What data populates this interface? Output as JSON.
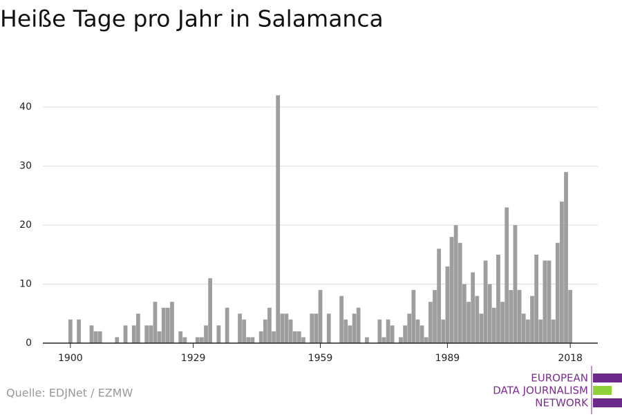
{
  "chart_data": {
    "type": "bar",
    "title": "Heiße Tage pro Jahr in Salamanca",
    "source": "Quelle: EDJNet / EZMW",
    "logo": [
      "EUROPEAN",
      "DATA JOURNALISM",
      "NETWORK"
    ],
    "color": "#9e9e9e",
    "x": [
      1900,
      1901,
      1902,
      1903,
      1904,
      1905,
      1906,
      1907,
      1908,
      1909,
      1910,
      1911,
      1912,
      1913,
      1914,
      1915,
      1916,
      1917,
      1918,
      1919,
      1920,
      1921,
      1922,
      1923,
      1924,
      1925,
      1926,
      1927,
      1928,
      1929,
      1930,
      1931,
      1932,
      1933,
      1934,
      1935,
      1936,
      1937,
      1938,
      1939,
      1940,
      1941,
      1942,
      1943,
      1944,
      1945,
      1946,
      1947,
      1948,
      1949,
      1950,
      1951,
      1952,
      1953,
      1954,
      1955,
      1956,
      1957,
      1958,
      1959,
      1960,
      1961,
      1962,
      1963,
      1964,
      1965,
      1966,
      1967,
      1968,
      1969,
      1970,
      1971,
      1972,
      1973,
      1974,
      1975,
      1976,
      1977,
      1978,
      1979,
      1980,
      1981,
      1982,
      1983,
      1984,
      1985,
      1986,
      1987,
      1988,
      1989,
      1990,
      1991,
      1992,
      1993,
      1994,
      1995,
      1996,
      1997,
      1998,
      1999,
      2000,
      2001,
      2002,
      2003,
      2004,
      2005,
      2006,
      2007,
      2008,
      2009,
      2010,
      2011,
      2012,
      2013,
      2014,
      2015,
      2016,
      2017,
      2018
    ],
    "values": [
      4,
      0,
      4,
      0,
      0,
      3,
      2,
      2,
      0,
      0,
      0,
      1,
      0,
      3,
      0,
      3,
      5,
      0,
      3,
      3,
      7,
      2,
      6,
      6,
      7,
      0,
      2,
      1,
      0,
      0,
      1,
      1,
      3,
      11,
      0,
      3,
      0,
      6,
      0,
      0,
      5,
      4,
      1,
      1,
      0,
      2,
      4,
      6,
      2,
      42,
      5,
      5,
      4,
      2,
      2,
      1,
      0,
      5,
      5,
      9,
      0,
      5,
      0,
      0,
      8,
      4,
      3,
      5,
      6,
      0,
      1,
      0,
      0,
      4,
      1,
      4,
      3,
      0,
      1,
      3,
      5,
      9,
      4,
      3,
      1,
      7,
      9,
      16,
      4,
      13,
      18,
      20,
      17,
      10,
      7,
      12,
      8,
      5,
      14,
      10,
      6,
      15,
      7,
      23,
      9,
      20,
      9,
      5,
      4,
      8,
      15,
      4,
      14,
      14,
      4,
      17,
      24,
      29,
      9
    ],
    "xlim": [
      1893.5,
      2024.5
    ],
    "xticks": [
      1900,
      1929,
      1959,
      1989,
      2018
    ],
    "ylim": [
      0,
      44
    ],
    "yticks": [
      0,
      10,
      20,
      30,
      40
    ],
    "grid": true
  }
}
